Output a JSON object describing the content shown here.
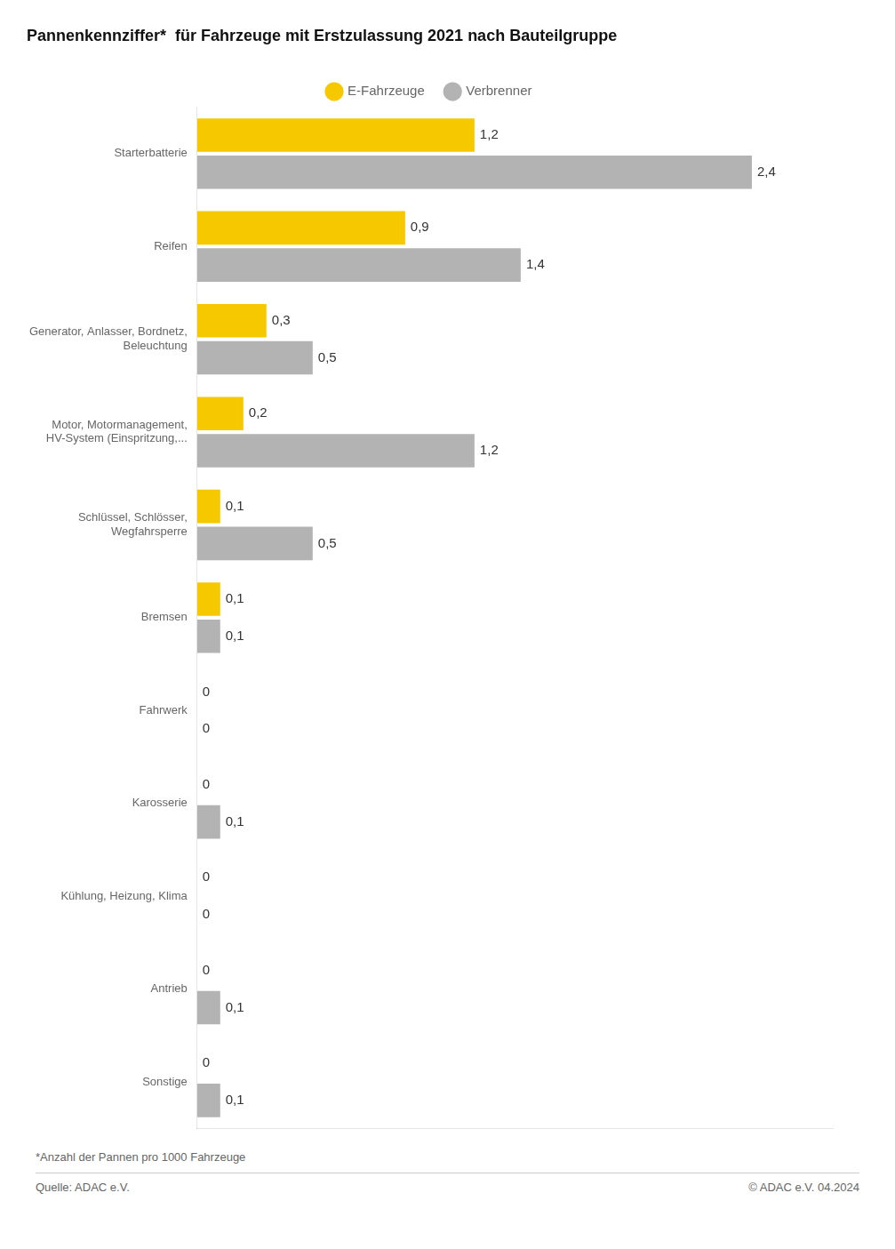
{
  "chart_data": {
    "type": "bar",
    "orientation": "horizontal",
    "title": "Pannenkennziffer*  für Fahrzeuge mit Erstzulassung 2021 nach Bauteilgruppe",
    "categories": [
      "Starterbatterie",
      "Reifen",
      "Generator, Anlasser, Bordnetz,\nBeleuchtung",
      "Motor, Motormanagement,\nHV-System (Einspritzung,...",
      "Schlüssel, Schlösser,\nWegfahrsperre",
      "Bremsen",
      "Fahrwerk",
      "Karosserie",
      "Kühlung, Heizung, Klima",
      "Antrieb",
      "Sonstige"
    ],
    "series": [
      {
        "name": "E-Fahrzeuge",
        "color": "#F5C800",
        "values": [
          1.2,
          0.9,
          0.3,
          0.2,
          0.1,
          0.1,
          0.0,
          0.0,
          0.0,
          0.0,
          0.0
        ],
        "value_labels": [
          "1,2",
          "0,9",
          "0,3",
          "0,2",
          "0,1",
          "0,1",
          "0",
          "0",
          "0",
          "0",
          "0"
        ]
      },
      {
        "name": "Verbrenner",
        "color": "#B3B3B3",
        "values": [
          2.4,
          1.4,
          0.5,
          1.2,
          0.5,
          0.1,
          0.0,
          0.1,
          0.0,
          0.1,
          0.1
        ],
        "value_labels": [
          "2,4",
          "1,4",
          "0,5",
          "1,2",
          "0,5",
          "0,1",
          "0",
          "0,1",
          "0",
          "0,1",
          "0,1"
        ]
      }
    ],
    "xlim": [
      0,
      2.75
    ],
    "grid": false,
    "legend": "top",
    "data_labels": true,
    "tick_labels": "y",
    "annotations": [
      "*Anzahl der Pannen pro 1000 Fahrzeuge",
      "Quelle: ADAC e.V.",
      "© ADAC e.V. 04.2024"
    ]
  }
}
